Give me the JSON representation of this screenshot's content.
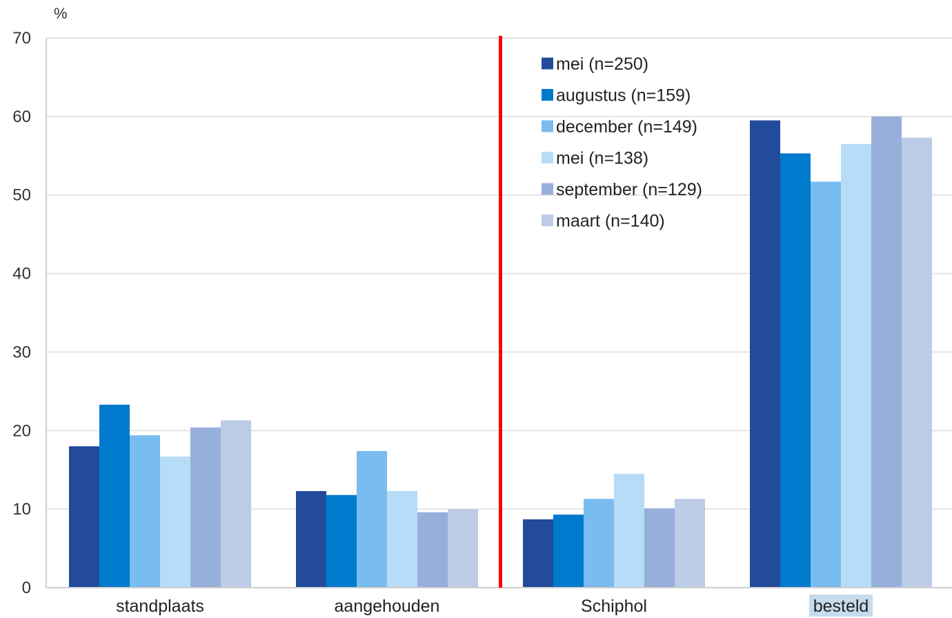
{
  "chart_data": {
    "type": "bar",
    "ylabel": "%",
    "ylim": [
      0,
      70
    ],
    "yticks": [
      0,
      10,
      20,
      30,
      40,
      50,
      60,
      70
    ],
    "grid": true,
    "legend_position": "top-center-right",
    "categories": [
      "standplaats",
      "aangehouden",
      "Schiphol",
      "besteld"
    ],
    "highlighted_category": "besteld",
    "divider_after_category": "aangehouden",
    "divider_color": "#ff0000",
    "series": [
      {
        "name": "mei (n=250)",
        "color": "#234b9b",
        "values": [
          18,
          12.3,
          8.7,
          59.5
        ]
      },
      {
        "name": "augustus (n=159)",
        "color": "#007acc",
        "values": [
          23.3,
          11.8,
          9.3,
          55.3
        ]
      },
      {
        "name": "december (n=149)",
        "color": "#78bcf0",
        "values": [
          19.4,
          17.4,
          11.3,
          51.7
        ]
      },
      {
        "name": "mei (n=138)",
        "color": "#b7dcf7",
        "values": [
          16.7,
          12.3,
          14.5,
          56.5
        ]
      },
      {
        "name": "september (n=129)",
        "color": "#97afdb",
        "values": [
          20.4,
          9.6,
          10.1,
          60
        ]
      },
      {
        "name": "maart (n=140)",
        "color": "#bccbe6",
        "values": [
          21.3,
          10,
          11.3,
          57.3
        ]
      }
    ]
  }
}
